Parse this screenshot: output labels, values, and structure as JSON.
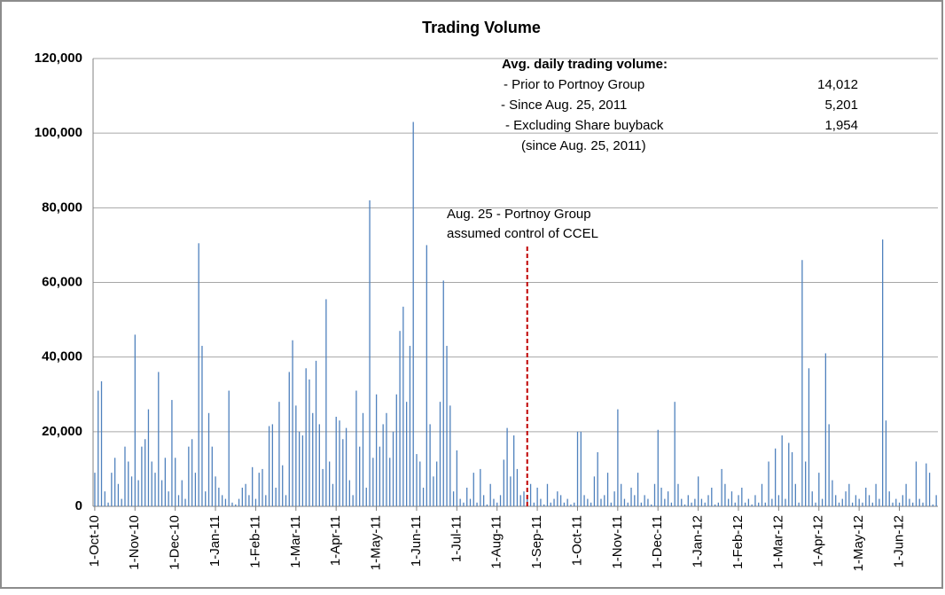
{
  "chart_data": {
    "type": "bar",
    "title": "Trading Volume",
    "categories": [
      "1-Oct-10",
      null,
      null,
      null,
      null,
      null,
      null,
      null,
      null,
      null,
      null,
      null,
      "1-Nov-10",
      null,
      null,
      null,
      null,
      null,
      null,
      null,
      null,
      null,
      null,
      null,
      "1-Dec-10",
      null,
      null,
      null,
      null,
      null,
      null,
      null,
      null,
      null,
      null,
      null,
      "1-Jan-11",
      null,
      null,
      null,
      null,
      null,
      null,
      null,
      null,
      null,
      null,
      null,
      "1-Feb-11",
      null,
      null,
      null,
      null,
      null,
      null,
      null,
      null,
      null,
      null,
      null,
      "1-Mar-11",
      null,
      null,
      null,
      null,
      null,
      null,
      null,
      null,
      null,
      null,
      null,
      "1-Apr-11",
      null,
      null,
      null,
      null,
      null,
      null,
      null,
      null,
      null,
      null,
      null,
      "1-May-11",
      null,
      null,
      null,
      null,
      null,
      null,
      null,
      null,
      null,
      null,
      null,
      "1-Jun-11",
      null,
      null,
      null,
      null,
      null,
      null,
      null,
      null,
      null,
      null,
      null,
      "1-Jul-11",
      null,
      null,
      null,
      null,
      null,
      null,
      null,
      null,
      null,
      null,
      null,
      "1-Aug-11",
      null,
      null,
      null,
      null,
      null,
      null,
      null,
      null,
      null,
      null,
      null,
      "1-Sep-11",
      null,
      null,
      null,
      null,
      null,
      null,
      null,
      null,
      null,
      null,
      null,
      "1-Oct-11",
      null,
      null,
      null,
      null,
      null,
      null,
      null,
      null,
      null,
      null,
      null,
      "1-Nov-11",
      null,
      null,
      null,
      null,
      null,
      null,
      null,
      null,
      null,
      null,
      null,
      "1-Dec-11",
      null,
      null,
      null,
      null,
      null,
      null,
      null,
      null,
      null,
      null,
      null,
      "1-Jan-12",
      null,
      null,
      null,
      null,
      null,
      null,
      null,
      null,
      null,
      null,
      null,
      "1-Feb-12",
      null,
      null,
      null,
      null,
      null,
      null,
      null,
      null,
      null,
      null,
      null,
      "1-Mar-12",
      null,
      null,
      null,
      null,
      null,
      null,
      null,
      null,
      null,
      null,
      null,
      "1-Apr-12",
      null,
      null,
      null,
      null,
      null,
      null,
      null,
      null,
      null,
      null,
      null,
      "1-May-12",
      null,
      null,
      null,
      null,
      null,
      null,
      null,
      null,
      null,
      null,
      null,
      "1-Jun-12",
      null,
      null,
      null,
      null,
      null,
      null,
      null,
      null,
      null,
      null,
      null
    ],
    "values": [
      9000,
      31000,
      33500,
      4000,
      1000,
      9000,
      13000,
      6000,
      2000,
      16000,
      12000,
      8000,
      46000,
      7000,
      16000,
      18000,
      26000,
      12000,
      9000,
      36000,
      7000,
      13000,
      4000,
      28500,
      13000,
      3000,
      7000,
      2000,
      16000,
      18000,
      9000,
      70500,
      43000,
      4000,
      25000,
      16000,
      8000,
      5000,
      3000,
      2000,
      31000,
      1000,
      500,
      2000,
      5000,
      6000,
      3000,
      10500,
      2000,
      9000,
      10000,
      3000,
      21500,
      22000,
      5000,
      28000,
      11000,
      3000,
      36000,
      44500,
      27000,
      20000,
      19000,
      37000,
      34000,
      25000,
      39000,
      22000,
      10000,
      55500,
      12000,
      6000,
      24000,
      23000,
      18000,
      21000,
      7000,
      3000,
      31000,
      16000,
      25000,
      5000,
      82000,
      13000,
      30000,
      16000,
      22000,
      25000,
      13000,
      20000,
      30000,
      47000,
      53500,
      28000,
      43000,
      103000,
      14000,
      12000,
      5000,
      70000,
      22000,
      8000,
      12000,
      28000,
      60500,
      43000,
      27000,
      4000,
      15000,
      2000,
      1000,
      5000,
      2000,
      9000,
      1000,
      10000,
      3000,
      500,
      6000,
      2000,
      1000,
      3000,
      12500,
      21000,
      8000,
      19000,
      10000,
      3000,
      4000,
      2000,
      6000,
      1000,
      5000,
      2000,
      500,
      6000,
      1000,
      2000,
      4000,
      3000,
      1000,
      2000,
      500,
      1000,
      20000,
      20000,
      3000,
      2000,
      1000,
      8000,
      14500,
      2000,
      3000,
      9000,
      1000,
      4000,
      26000,
      6000,
      2000,
      1000,
      5000,
      3000,
      9000,
      1000,
      3000,
      2000,
      500,
      6000,
      20500,
      5000,
      2000,
      4000,
      1000,
      28000,
      6000,
      2000,
      500,
      3000,
      1000,
      2000,
      8000,
      2000,
      1000,
      3000,
      5000,
      500,
      1000,
      10000,
      6000,
      2000,
      4000,
      1000,
      3000,
      5000,
      1000,
      2000,
      500,
      3000,
      1000,
      6000,
      1000,
      12000,
      2000,
      15500,
      3000,
      19000,
      2000,
      17000,
      14500,
      6000,
      1000,
      66000,
      12000,
      37000,
      4000,
      1000,
      9000,
      2000,
      41000,
      22000,
      7000,
      3000,
      1000,
      2000,
      4000,
      6000,
      1000,
      3000,
      2000,
      1000,
      5000,
      3000,
      1000,
      6000,
      2000,
      71500,
      23000,
      4000,
      1000,
      2000,
      1000,
      3000,
      6000,
      2000,
      1000,
      12000,
      2000,
      1000,
      11500,
      9000,
      500,
      3000
    ],
    "color": "#4f81bd",
    "ylim": [
      0,
      120000
    ],
    "yticks": [
      0,
      {
        "value": 20000,
        "label": "20,000"
      },
      {
        "value": 40000,
        "label": "40,000"
      },
      {
        "value": 60000,
        "label": "60,000"
      },
      {
        "value": 80000,
        "label": "80,000"
      },
      {
        "value": 100000,
        "label": "100,000"
      },
      {
        "value": 120000,
        "label": "120,000"
      }
    ],
    "grid": true,
    "annotation": [
      "Aug. 25 - Portnoy Group",
      "assumed control of CCEL"
    ],
    "info_box": {
      "heading": "Avg. daily trading volume:",
      "rows": [
        {
          "label": "- Prior to Portnoy Group",
          "value": "14,012"
        },
        {
          "label": "- Since Aug. 25, 2011",
          "value": "5,201"
        },
        {
          "label": "- Excluding Share buyback",
          "value": "1,954"
        },
        {
          "label": "(since Aug. 25, 2011)",
          "value": null
        }
      ]
    }
  }
}
